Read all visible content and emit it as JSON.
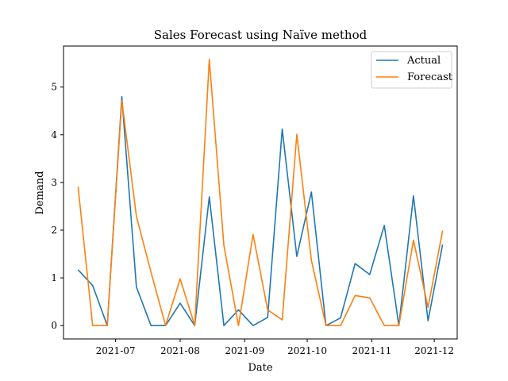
{
  "chart_data": {
    "type": "line",
    "title": "Sales Forecast using Naïve method",
    "xlabel": "Date",
    "ylabel": "Demand",
    "x": [
      "2021-06-13",
      "2021-06-20",
      "2021-06-27",
      "2021-07-04",
      "2021-07-11",
      "2021-07-18",
      "2021-07-25",
      "2021-08-01",
      "2021-08-08",
      "2021-08-15",
      "2021-08-22",
      "2021-08-29",
      "2021-09-05",
      "2021-09-12",
      "2021-09-19",
      "2021-09-26",
      "2021-10-03",
      "2021-10-10",
      "2021-10-17",
      "2021-10-24",
      "2021-10-31",
      "2021-11-07",
      "2021-11-14",
      "2021-11-21",
      "2021-11-28",
      "2021-12-05"
    ],
    "series": [
      {
        "name": "Actual",
        "color": "#1f77b4",
        "values": [
          1.17,
          0.84,
          0.0,
          4.8,
          0.81,
          0.0,
          0.0,
          0.47,
          0.0,
          2.7,
          0.0,
          0.33,
          0.0,
          0.17,
          4.12,
          1.45,
          2.8,
          0.0,
          0.16,
          1.3,
          1.07,
          2.1,
          0.0,
          2.72,
          0.1,
          1.7
        ]
      },
      {
        "name": "Forecast",
        "color": "#ff7f0e",
        "values": [
          2.91,
          0.0,
          0.0,
          4.72,
          2.29,
          1.12,
          0.0,
          0.98,
          0.0,
          5.58,
          1.68,
          0.0,
          1.91,
          0.33,
          0.12,
          4.01,
          1.37,
          0.0,
          0.0,
          0.63,
          0.58,
          0.0,
          0.0,
          1.79,
          0.38,
          1.99
        ]
      }
    ],
    "x_ticks": [
      {
        "date": "2021-07-01",
        "label": "2021-07"
      },
      {
        "date": "2021-08-01",
        "label": "2021-08"
      },
      {
        "date": "2021-09-01",
        "label": "2021-09"
      },
      {
        "date": "2021-10-01",
        "label": "2021-10"
      },
      {
        "date": "2021-11-01",
        "label": "2021-11"
      },
      {
        "date": "2021-12-01",
        "label": "2021-12"
      }
    ],
    "y_ticks": [
      0,
      1,
      2,
      3,
      4,
      5
    ],
    "xlim": [
      "2021-06-06",
      "2021-12-12"
    ],
    "ylim": [
      -0.28,
      5.86
    ],
    "grid": false,
    "legend_position": "top-right"
  }
}
